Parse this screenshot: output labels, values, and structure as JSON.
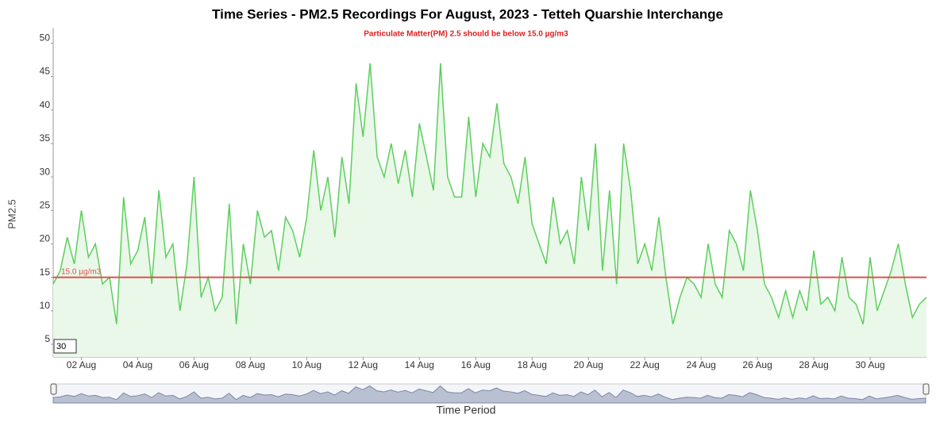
{
  "chart_data": {
    "type": "line",
    "title": "Time Series - PM2.5 Recordings For August, 2023 - Tetteh Quarshie Interchange",
    "subtitle": "Particulate Matter(PM) 2.5 should be below 15.0 µg/m3",
    "x_label": "Time Period",
    "y_label": "PM2.5",
    "zoom_input": "30",
    "threshold": {
      "value": 15,
      "label": "15.0 µg/m3",
      "color": "#d9534f"
    },
    "x": [
      1,
      1.25,
      1.5,
      1.75,
      2,
      2.25,
      2.5,
      2.75,
      3,
      3.25,
      3.5,
      3.75,
      4,
      4.25,
      4.5,
      4.75,
      5,
      5.25,
      5.5,
      5.75,
      6,
      6.25,
      6.5,
      6.75,
      7,
      7.25,
      7.5,
      7.75,
      8,
      8.25,
      8.5,
      8.75,
      9,
      9.25,
      9.5,
      9.75,
      10,
      10.25,
      10.5,
      10.75,
      11,
      11.25,
      11.5,
      11.75,
      12,
      12.25,
      12.5,
      12.75,
      13,
      13.25,
      13.5,
      13.75,
      14,
      14.25,
      14.5,
      14.75,
      15,
      15.25,
      15.5,
      15.75,
      16,
      16.25,
      16.5,
      16.75,
      17,
      17.25,
      17.5,
      17.75,
      18,
      18.25,
      18.5,
      18.75,
      19,
      19.25,
      19.5,
      19.75,
      20,
      20.25,
      20.5,
      20.75,
      21,
      21.25,
      21.5,
      21.75,
      22,
      22.25,
      22.5,
      22.75,
      23,
      23.25,
      23.5,
      23.75,
      24,
      24.25,
      24.5,
      24.75,
      25,
      25.25,
      25.5,
      25.75,
      26,
      26.25,
      26.5,
      26.75,
      27,
      27.25,
      27.5,
      27.75,
      28,
      28.25,
      28.5,
      28.75,
      29,
      29.25,
      29.5,
      29.75,
      30,
      30.25,
      30.5,
      30.75,
      31,
      31.25,
      31.5,
      31.75,
      32
    ],
    "series": [
      {
        "name": "PM2.5",
        "color": "#5ccf5c",
        "fill": "#e9f8e9",
        "values": [
          14,
          16,
          21,
          17,
          25,
          18,
          20,
          14,
          15,
          8,
          27,
          17,
          19,
          24,
          14,
          28,
          18,
          20,
          10,
          17,
          30,
          12,
          15,
          10,
          12,
          26,
          8,
          20,
          14,
          25,
          21,
          22,
          16,
          24,
          22,
          18,
          24,
          34,
          25,
          30,
          21,
          33,
          26,
          44,
          36,
          47,
          33,
          30,
          35,
          29,
          34,
          27,
          38,
          33,
          28,
          47,
          30,
          27,
          27,
          39,
          27,
          35,
          33,
          41,
          32,
          30,
          26,
          33,
          23,
          20,
          17,
          27,
          20,
          22,
          17,
          30,
          22,
          35,
          16,
          28,
          14,
          35,
          28,
          17,
          20,
          16,
          24,
          15,
          8,
          12,
          15,
          14,
          12,
          20,
          14,
          12,
          22,
          20,
          16,
          28,
          22,
          14,
          12,
          9,
          13,
          9,
          13,
          10,
          19,
          11,
          12,
          10,
          18,
          12,
          11,
          8,
          18,
          10,
          13,
          16,
          20,
          14,
          9,
          11,
          12
        ]
      }
    ],
    "xlim": [
      1,
      32
    ],
    "ylim": [
      3.1,
      52.3
    ],
    "xticks": [
      {
        "value": 2,
        "label": "02 Aug"
      },
      {
        "value": 4,
        "label": "04 Aug"
      },
      {
        "value": 6,
        "label": "06 Aug"
      },
      {
        "value": 8,
        "label": "08 Aug"
      },
      {
        "value": 10,
        "label": "10 Aug"
      },
      {
        "value": 12,
        "label": "12 Aug"
      },
      {
        "value": 14,
        "label": "14 Aug"
      },
      {
        "value": 16,
        "label": "16 Aug"
      },
      {
        "value": 18,
        "label": "18 Aug"
      },
      {
        "value": 20,
        "label": "20 Aug"
      },
      {
        "value": 22,
        "label": "22 Aug"
      },
      {
        "value": 24,
        "label": "24 Aug"
      },
      {
        "value": 26,
        "label": "26 Aug"
      },
      {
        "value": 28,
        "label": "28 Aug"
      },
      {
        "value": 30,
        "label": "30 Aug"
      }
    ],
    "yticks": [
      5,
      10,
      15,
      20,
      25,
      30,
      35,
      40,
      45,
      50
    ]
  }
}
